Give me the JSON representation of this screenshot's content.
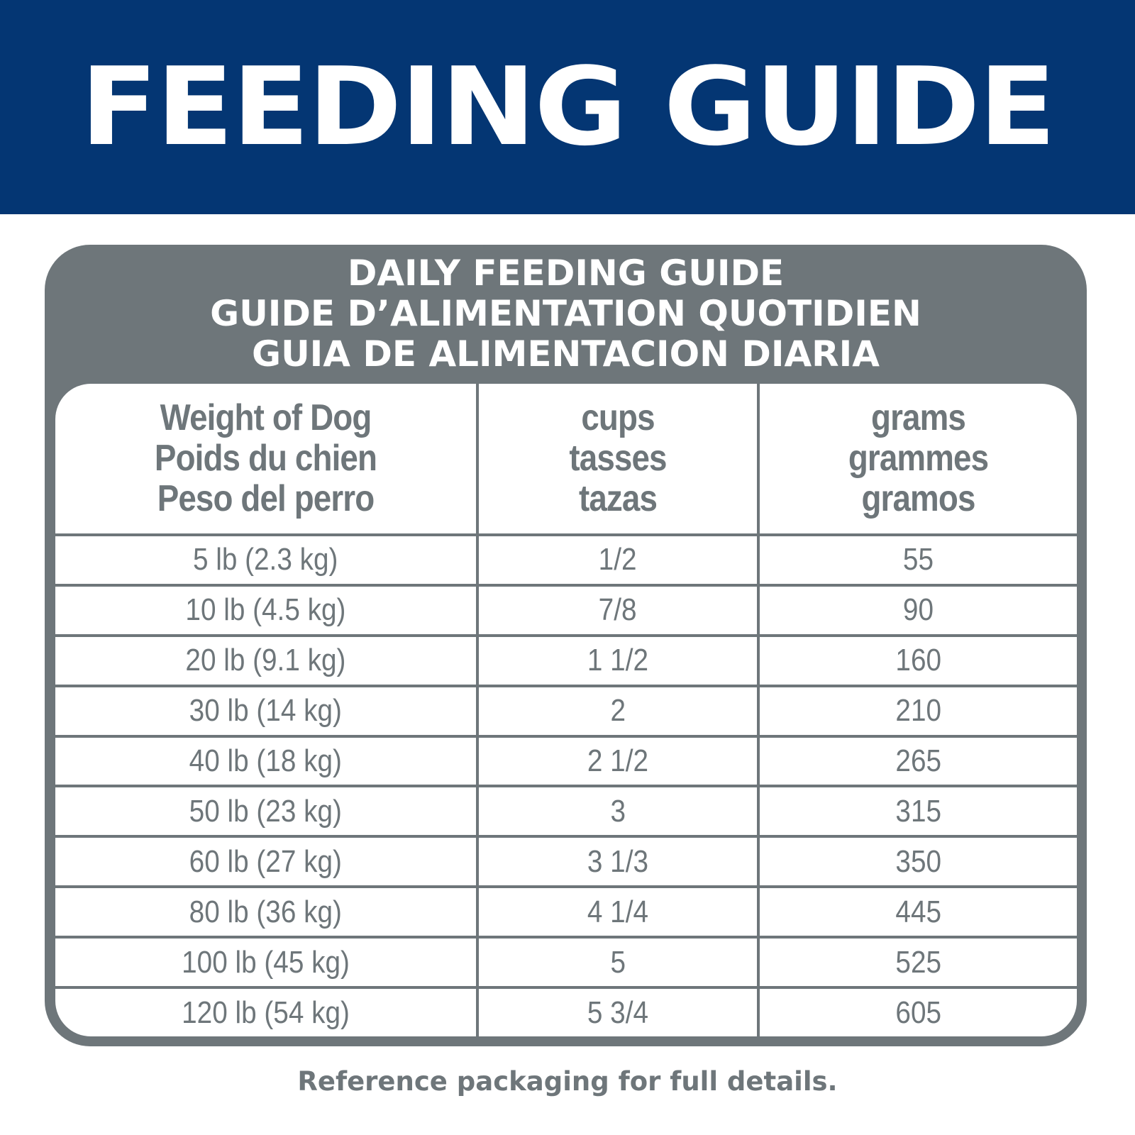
{
  "banner": {
    "title": "FEEDING GUIDE"
  },
  "guide": {
    "titles": [
      "DAILY FEEDING GUIDE",
      "GUIDE D’ALIMENTATION QUOTIDIEN",
      "GUIA DE ALIMENTACION DIARIA"
    ],
    "headers": [
      [
        "Weight of Dog",
        "Poids du chien",
        "Peso del perro"
      ],
      [
        "cups",
        "tasses",
        "tazas"
      ],
      [
        "grams",
        "grammes",
        "gramos"
      ]
    ],
    "rows": [
      {
        "weight": "5 lb (2.3 kg)",
        "cups": "1/2",
        "grams": "55"
      },
      {
        "weight": "10 lb (4.5 kg)",
        "cups": "7/8",
        "grams": "90"
      },
      {
        "weight": "20 lb (9.1 kg)",
        "cups": "1 1/2",
        "grams": "160"
      },
      {
        "weight": "30 lb (14 kg)",
        "cups": "2",
        "grams": "210"
      },
      {
        "weight": "40 lb (18 kg)",
        "cups": "2 1/2",
        "grams": "265"
      },
      {
        "weight": "50 lb (23 kg)",
        "cups": "3",
        "grams": "315"
      },
      {
        "weight": "60 lb (27 kg)",
        "cups": "3 1/3",
        "grams": "350"
      },
      {
        "weight": "80 lb (36 kg)",
        "cups": "4 1/4",
        "grams": "445"
      },
      {
        "weight": "100 lb (45 kg)",
        "cups": "5",
        "grams": "525"
      },
      {
        "weight": "120 lb (54 kg)",
        "cups": "5 3/4",
        "grams": "605"
      }
    ]
  },
  "footer": {
    "note": "Reference packaging for full details."
  },
  "colors": {
    "banner": "#043673",
    "gray": "#6e767a"
  }
}
